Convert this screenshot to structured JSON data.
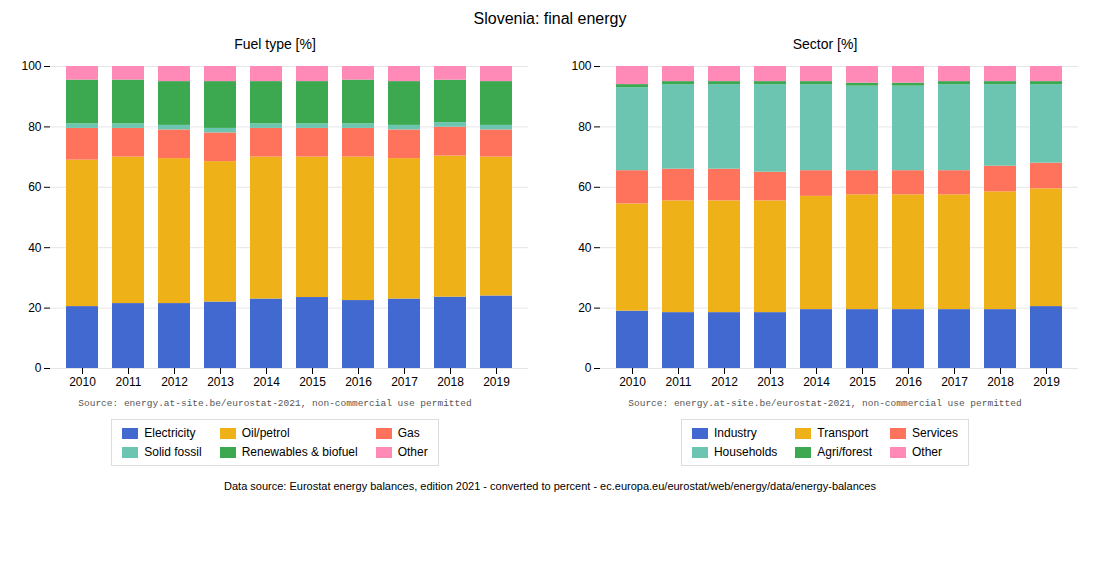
{
  "title": "Slovenia: final energy",
  "annotations": [
    "Data source: Eurostat energy balances, edition 2021 - converted to percent - ec.europa.eu/eurostat/web/energy/data/energy-balances"
  ],
  "chart_data": [
    {
      "type": "bar",
      "title": "Fuel type [%]",
      "categories": [
        "2010",
        "2011",
        "2012",
        "2013",
        "2014",
        "2015",
        "2016",
        "2017",
        "2018",
        "2019"
      ],
      "series": [
        {
          "name": "Electricity",
          "values": [
            20.5,
            21.5,
            21.5,
            22.0,
            23.0,
            23.5,
            22.5,
            23.0,
            23.6180904523,
            24.0
          ]
        },
        {
          "name": "Oil/petrol",
          "values": [
            48.5,
            48.5,
            48.0,
            46.5,
            47.0,
            46.5,
            47.5,
            46.5,
            46.7336683417,
            46.0
          ]
        },
        {
          "name": "Gas",
          "values": [
            10.5,
            9.5,
            9.5,
            9.5,
            9.5,
            9.5,
            9.5,
            9.5,
            9.5477386935,
            9.0
          ]
        },
        {
          "name": "Solid fossil",
          "values": [
            1.5,
            1.5,
            1.5,
            1.5,
            1.5,
            1.5,
            1.5,
            1.5,
            1.5075376884,
            1.5
          ]
        },
        {
          "name": "Renewables & biofuel",
          "values": [
            14.5,
            14.5,
            14.5,
            15.5,
            14.0,
            14.0,
            14.5,
            14.5,
            14.0703517588,
            14.5
          ]
        },
        {
          "name": "Other",
          "values": [
            4.5,
            4.5,
            5.0,
            5.0,
            5.0,
            5.0,
            4.5,
            5.0,
            4.5226130653,
            5.0
          ]
        }
      ],
      "stacked": true,
      "ylim": [
        0,
        100
      ],
      "yticks": [
        0,
        20,
        40,
        60,
        80,
        100
      ],
      "grid": true,
      "legend": "bottom",
      "annotations": [
        "Source: energy.at-site.be/eurostat-2021, non-commercial use permitted"
      ]
    },
    {
      "type": "bar",
      "title": "Sector [%]",
      "categories": [
        "2010",
        "2011",
        "2012",
        "2013",
        "2014",
        "2015",
        "2016",
        "2017",
        "2018",
        "2019"
      ],
      "series": [
        {
          "name": "Industry",
          "values": [
            19.0,
            18.5,
            18.5,
            18.5,
            19.5,
            19.5,
            19.5,
            19.5,
            19.5,
            20.5
          ]
        },
        {
          "name": "Transport",
          "values": [
            35.5,
            37.0,
            37.0,
            37.0,
            37.5,
            38.0,
            38.0,
            38.0,
            39.0,
            39.0
          ]
        },
        {
          "name": "Services",
          "values": [
            11.0,
            10.5,
            10.5,
            9.5,
            8.5,
            8.0,
            8.0,
            8.0,
            8.5,
            8.5
          ]
        },
        {
          "name": "Households",
          "values": [
            27.5,
            28.0,
            28.0,
            29.0,
            28.5,
            28.0,
            28.0,
            28.5,
            27.0,
            26.0
          ]
        },
        {
          "name": "Agri/forest",
          "values": [
            1.0,
            1.0,
            1.0,
            1.0,
            1.0,
            1.0,
            1.0,
            1.0,
            1.0,
            1.0
          ]
        },
        {
          "name": "Other",
          "values": [
            6.0,
            5.0,
            5.0,
            5.0,
            5.0,
            5.5,
            5.5,
            5.0,
            5.0,
            5.0
          ]
        }
      ],
      "stacked": true,
      "ylim": [
        0,
        100
      ],
      "yticks": [
        0,
        20,
        40,
        60,
        80,
        100
      ],
      "grid": true,
      "legend": "bottom",
      "annotations": [
        "Source: energy.at-site.be/eurostat-2021, non-commercial use permitted"
      ]
    }
  ]
}
